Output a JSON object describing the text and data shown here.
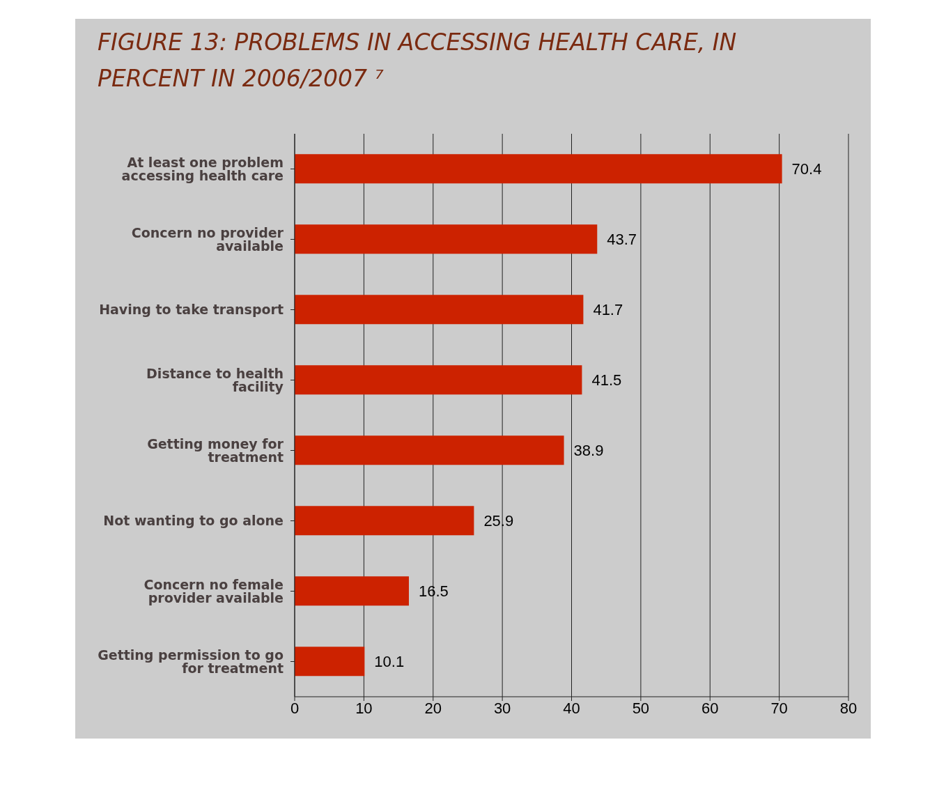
{
  "chart_data": {
    "type": "bar",
    "orientation": "horizontal",
    "title": "FIGURE 13:  PROBLEMS IN ACCESSING HEALTH CARE, IN PERCENT  IN 2006/2007 ⁷",
    "categories": [
      "At least one problem accessing health care",
      "Concern no provider available",
      "Having to take transport",
      "Distance to health facility",
      "Getting money for treatment",
      "Not wanting to go alone",
      "Concern no female provider available",
      "Getting permission to go for treatment"
    ],
    "values": [
      70.4,
      43.7,
      41.7,
      41.5,
      38.9,
      25.9,
      16.5,
      10.1
    ],
    "color": "#cc2200",
    "xlim": [
      0,
      80
    ],
    "xticks": [
      0,
      10,
      20,
      30,
      40,
      50,
      60,
      70,
      80
    ],
    "grid": "x",
    "data_labels": true
  }
}
